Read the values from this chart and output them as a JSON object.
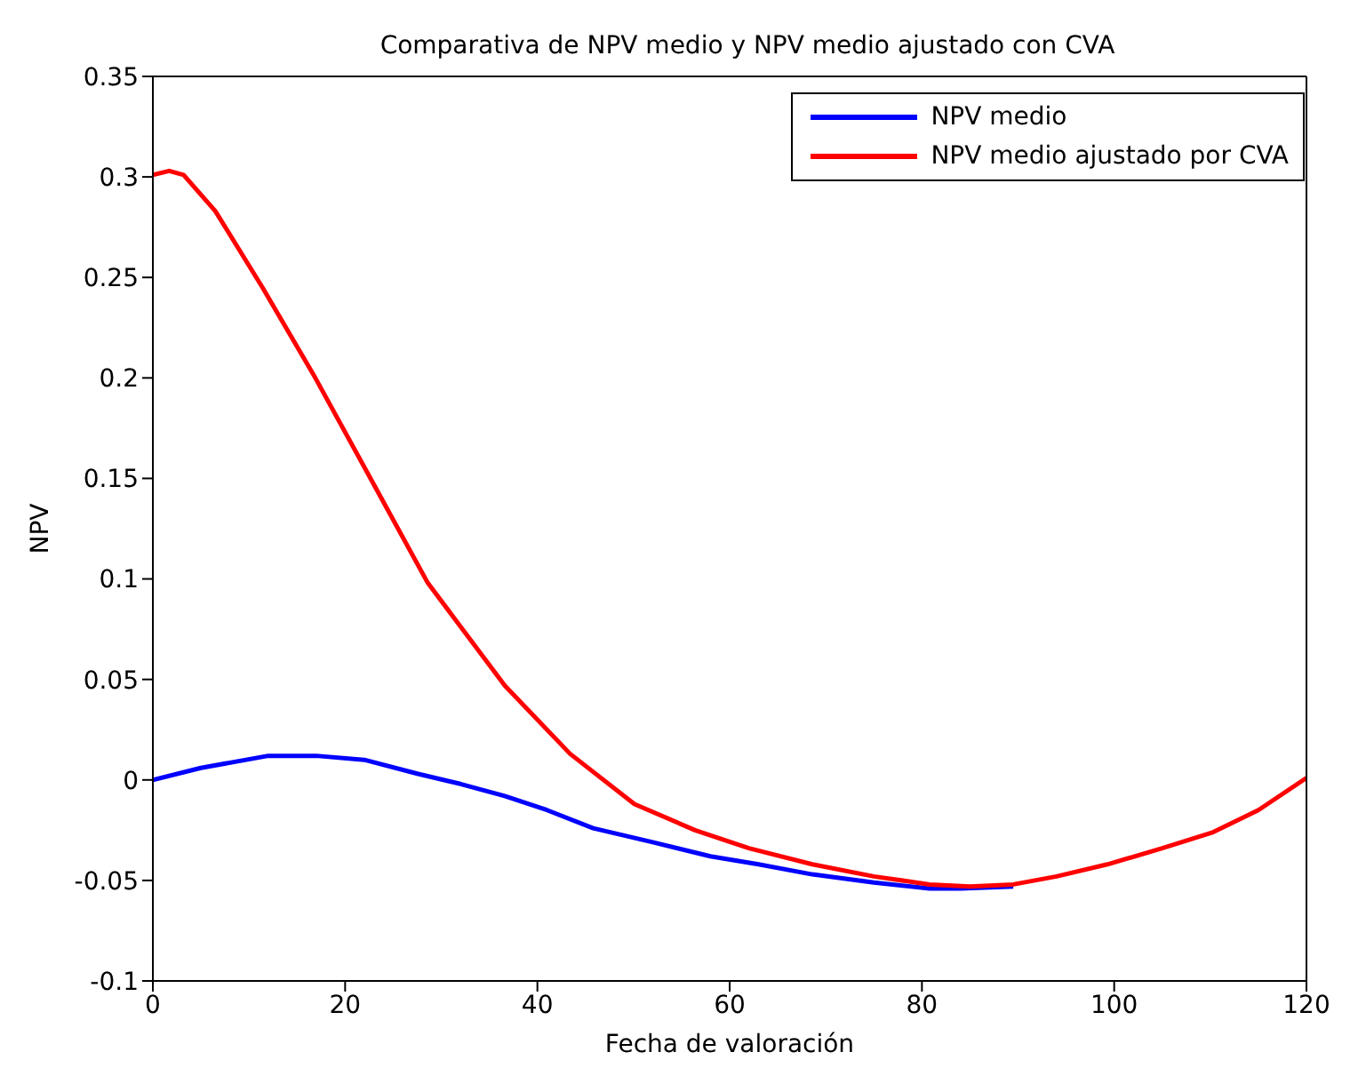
{
  "chart_data": {
    "type": "line",
    "title": "Comparativa de NPV medio y NPV medio ajustado con CVA",
    "xlabel": "Fecha de valoración",
    "ylabel": "NPV",
    "xlim": [
      0,
      120
    ],
    "xticks": [
      0,
      20,
      40,
      60,
      80,
      100,
      120
    ],
    "ylim": [
      -0.1,
      0.35
    ],
    "yticks": [
      -0.1,
      -0.05,
      0,
      0.05,
      0.1,
      0.15,
      0.2,
      0.25,
      0.3,
      0.35
    ],
    "grid": false,
    "legend": "top right",
    "marker": "none",
    "line_style": "solid",
    "series": [
      {
        "name": "NPV medio",
        "color": "#0000ff",
        "x": [
          0,
          5,
          12,
          17,
          22,
          27.6,
          32,
          36.6,
          41,
          45.8,
          52,
          58,
          63,
          68.6,
          75,
          80.8,
          84,
          89.5
        ],
        "values": [
          0,
          0.006,
          0.012,
          0.012,
          0.01,
          0.003,
          -0.002,
          -0.008,
          -0.015,
          -0.024,
          -0.031,
          -0.038,
          -0.042,
          -0.047,
          -0.051,
          -0.054,
          -0.054,
          -0.053
        ]
      },
      {
        "name": "NPV medio ajustado por CVA",
        "color": "#ff0000",
        "x": [
          0,
          1.7,
          3.2,
          6.5,
          11.4,
          16.9,
          23.1,
          28.6,
          36.6,
          43.4,
          50.1,
          56.4,
          62,
          68.6,
          75,
          80.8,
          85,
          89.5,
          94,
          99.3,
          105,
          110.3,
          115,
          120
        ],
        "values": [
          0.301,
          0.303,
          0.301,
          0.283,
          0.245,
          0.2,
          0.146,
          0.098,
          0.047,
          0.013,
          -0.012,
          -0.025,
          -0.034,
          -0.042,
          -0.048,
          -0.052,
          -0.053,
          -0.052,
          -0.048,
          -0.042,
          -0.034,
          -0.026,
          -0.015,
          0.001
        ]
      }
    ]
  }
}
